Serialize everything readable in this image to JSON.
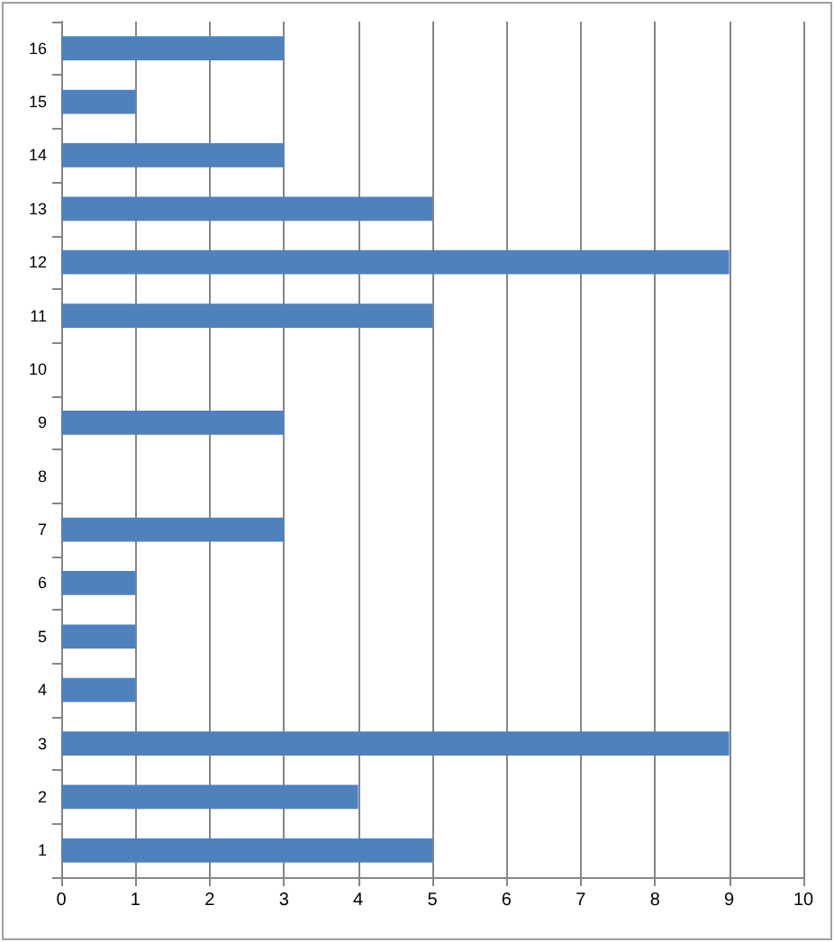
{
  "chart_data": {
    "type": "bar",
    "orientation": "horizontal",
    "categories": [
      "16",
      "15",
      "14",
      "13",
      "12",
      "11",
      "10",
      "9",
      "8",
      "7",
      "6",
      "5",
      "4",
      "3",
      "2",
      "1"
    ],
    "values": [
      3,
      1,
      3,
      5,
      9,
      5,
      0,
      3,
      0,
      3,
      1,
      1,
      1,
      9,
      4,
      5
    ],
    "color": "#4f81bd",
    "xlim": [
      0,
      10
    ],
    "xticks": [
      0,
      1,
      2,
      3,
      4,
      5,
      6,
      7,
      8,
      9,
      10
    ],
    "grid": "x"
  }
}
